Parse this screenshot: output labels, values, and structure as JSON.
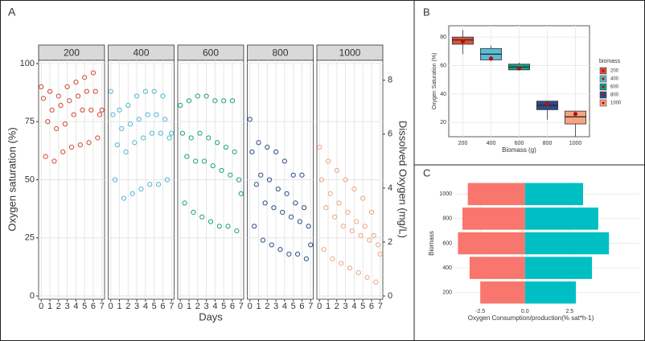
{
  "chart_data": [
    {
      "type": "scatter",
      "title": "A",
      "xlabel": "Days",
      "ylabel": "Oxygen saturation (%)",
      "y2label": "Dissolved Oxygen (mg/L)",
      "x": [
        0,
        0.25,
        0.5,
        0.75,
        1,
        1.25,
        1.5,
        1.75,
        2,
        2.25,
        2.5,
        2.75,
        3,
        3.25,
        3.5,
        3.75,
        4,
        4.25,
        4.5,
        4.75,
        5,
        5.25,
        5.5,
        5.75,
        6,
        6.25,
        6.5,
        6.75,
        7
      ],
      "xlim": [
        -0.3,
        7.3
      ],
      "xticks": [
        0,
        1,
        2,
        3,
        4,
        5,
        6,
        7
      ],
      "ylim": [
        0,
        100
      ],
      "yticks": [
        0,
        25,
        50,
        75,
        100
      ],
      "y2lim": [
        0,
        8.62
      ],
      "y2ticks": [
        0,
        2,
        4,
        6,
        8
      ],
      "grid": true,
      "series": [
        {
          "name": "200",
          "color": "#d4462b",
          "values": [
            90,
            85,
            60,
            75,
            88,
            80,
            58,
            72,
            86,
            82,
            62,
            74,
            90,
            84,
            64,
            78,
            92,
            86,
            65,
            80,
            94,
            88,
            66,
            80,
            96,
            88,
            68,
            78,
            80
          ]
        },
        {
          "name": "400",
          "color": "#4db6d3",
          "values": [
            88,
            78,
            50,
            65,
            80,
            72,
            42,
            62,
            82,
            74,
            44,
            66,
            86,
            76,
            46,
            68,
            88,
            78,
            48,
            70,
            88,
            78,
            48,
            70,
            86,
            76,
            50,
            68,
            70
          ]
        },
        {
          "name": "600",
          "color": "#19a083",
          "values": [
            82,
            70,
            40,
            60,
            84,
            68,
            36,
            58,
            86,
            70,
            34,
            58,
            86,
            68,
            32,
            56,
            84,
            66,
            30,
            54,
            84,
            64,
            30,
            52,
            84,
            62,
            28,
            50,
            44
          ]
        },
        {
          "name": "800",
          "color": "#2c4b8c",
          "values": [
            76,
            62,
            30,
            48,
            66,
            52,
            24,
            40,
            64,
            50,
            22,
            38,
            62,
            46,
            20,
            36,
            58,
            44,
            18,
            34,
            52,
            40,
            18,
            32,
            52,
            38,
            16,
            30,
            22
          ]
        },
        {
          "name": "1000",
          "color": "#f2a283",
          "values": [
            64,
            50,
            20,
            38,
            58,
            44,
            16,
            34,
            54,
            40,
            14,
            30,
            50,
            36,
            12,
            28,
            46,
            32,
            10,
            26,
            42,
            30,
            8,
            24,
            36,
            26,
            6,
            22,
            18
          ]
        }
      ]
    },
    {
      "type": "box",
      "title": "B",
      "xlabel": "Biomass (g)",
      "ylabel": "Oxygen Saturation (%)",
      "legend_title": "biomass",
      "categories": [
        "200",
        "400",
        "600",
        "800",
        "1000"
      ],
      "colors": [
        "#d4553c",
        "#5bbcd6",
        "#1a9e86",
        "#2f4a8a",
        "#f4a582"
      ],
      "mean_color": "#b01010",
      "boxes": [
        {
          "min": 68,
          "q1": 75,
          "median": 78,
          "q3": 80,
          "max": 85,
          "mean": 77
        },
        {
          "min": 63,
          "q1": 64,
          "median": 68,
          "q3": 72,
          "max": 74,
          "mean": 65
        },
        {
          "min": 57,
          "q1": 57,
          "median": 59,
          "q3": 61,
          "max": 62,
          "mean": 58
        },
        {
          "min": 22,
          "q1": 29,
          "median": 32,
          "q3": 35,
          "max": 35,
          "mean": 33
        },
        {
          "min": 10,
          "q1": 19,
          "median": 24,
          "q3": 28,
          "max": 28,
          "mean": 26
        }
      ],
      "ylim": [
        10,
        88
      ],
      "yticks": [
        20,
        40,
        60,
        80
      ],
      "grid": true
    },
    {
      "type": "hbar",
      "title": "C",
      "xlabel": "Oxygen Consumption/production(% sat*h-1)",
      "ylabel": "Biomass",
      "categories": [
        "200",
        "400",
        "600",
        "800",
        "1000"
      ],
      "series": [
        {
          "color": "#f8766d",
          "values": [
            -2.5,
            -3.1,
            -3.75,
            -3.5,
            -3.2
          ]
        },
        {
          "color": "#00bfc4",
          "values": [
            2.85,
            3.75,
            4.7,
            4.1,
            3.25
          ]
        }
      ],
      "xlim": [
        -3.95,
        6.4
      ],
      "xticks": [
        -2.5,
        {
          "value": 0,
          "label": "0.0"
        },
        2.5
      ],
      "grid": true
    }
  ]
}
